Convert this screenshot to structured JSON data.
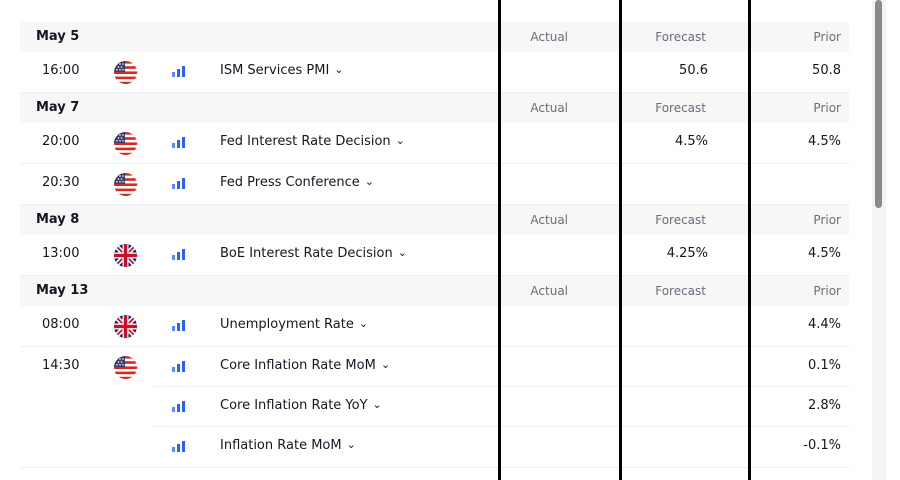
{
  "columns": {
    "actual": "Actual",
    "forecast": "Forecast",
    "prior": "Prior"
  },
  "groups": [
    {
      "date": "May 5",
      "events": [
        {
          "time": "16:00",
          "country": "us-flag-icon",
          "name": "ISM Services PMI",
          "actual": "",
          "forecast": "50.6",
          "prior": "50.8"
        }
      ]
    },
    {
      "date": "May 7",
      "events": [
        {
          "time": "20:00",
          "country": "us-flag-icon",
          "name": "Fed Interest Rate Decision",
          "actual": "",
          "forecast": "4.5%",
          "prior": "4.5%"
        },
        {
          "time": "20:30",
          "country": "us-flag-icon",
          "name": "Fed Press Conference",
          "actual": "",
          "forecast": "",
          "prior": ""
        }
      ]
    },
    {
      "date": "May 8",
      "events": [
        {
          "time": "13:00",
          "country": "uk-flag-icon",
          "name": "BoE Interest Rate Decision",
          "actual": "",
          "forecast": "4.25%",
          "prior": "4.5%"
        }
      ]
    },
    {
      "date": "May 13",
      "events": [
        {
          "time": "08:00",
          "country": "uk-flag-icon",
          "name": "Unemployment Rate",
          "actual": "",
          "forecast": "",
          "prior": "4.4%"
        },
        {
          "time": "14:30",
          "country": "us-flag-icon",
          "name": "Core Inflation Rate MoM",
          "actual": "",
          "forecast": "",
          "prior": "0.1%"
        },
        {
          "time": "",
          "country": "",
          "name": "Core Inflation Rate YoY",
          "actual": "",
          "forecast": "",
          "prior": "2.8%"
        },
        {
          "time": "",
          "country": "",
          "name": "Inflation Rate MoM",
          "actual": "",
          "forecast": "",
          "prior": "-0.1%"
        }
      ]
    }
  ],
  "colors": {
    "accent": "#2962ff",
    "header_bg": "#f7f7f8",
    "muted": "#6a6d78"
  }
}
